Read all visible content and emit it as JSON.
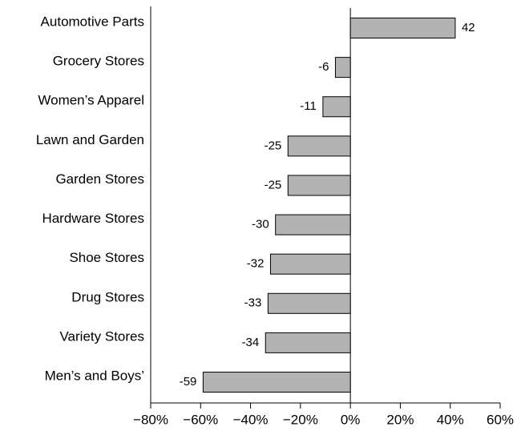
{
  "chart_data": {
    "type": "bar",
    "orientation": "horizontal",
    "categories": [
      "Automotive Parts",
      "Grocery Stores",
      "Women’s Apparel",
      "Lawn and Garden",
      "Garden Stores",
      "Hardware Stores",
      "Shoe Stores",
      "Drug Stores",
      "Variety Stores",
      "Men’s and Boys’"
    ],
    "values": [
      42,
      -6,
      -11,
      -25,
      -25,
      -30,
      -32,
      -33,
      -34,
      -59
    ],
    "color": "#b3b3b3",
    "xlim": [
      -80,
      60
    ],
    "xticks": [
      {
        "value": -80,
        "label": "−80%"
      },
      {
        "value": -60,
        "label": "−60%"
      },
      {
        "value": -40,
        "label": "−40%"
      },
      {
        "value": -20,
        "label": "−20%"
      },
      {
        "value": 0,
        "label": "0%"
      },
      {
        "value": 20,
        "label": "20%"
      },
      {
        "value": 40,
        "label": "40%"
      },
      {
        "value": 60,
        "label": "60%"
      }
    ],
    "grid": false
  }
}
